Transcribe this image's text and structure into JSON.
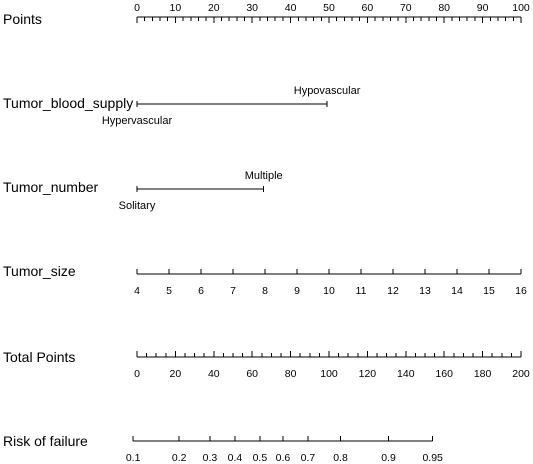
{
  "chart_data": {
    "type": "nomogram",
    "rows": [
      {
        "id": "points",
        "label": "Points",
        "kind": "scale",
        "min": 0,
        "max": 100,
        "major_ticks": [
          0,
          10,
          20,
          30,
          40,
          50,
          60,
          70,
          80,
          90,
          100
        ],
        "minor_step": 2,
        "labels_above": true
      },
      {
        "id": "tumor_blood_supply",
        "label": "Tumor_blood_supply",
        "kind": "categorical",
        "levels": [
          {
            "name": "Hypervascular",
            "points": 0,
            "label_position": "below"
          },
          {
            "name": "Hypovascular",
            "points": 49.5,
            "label_position": "above"
          }
        ]
      },
      {
        "id": "tumor_number",
        "label": "Tumor_number",
        "kind": "categorical",
        "levels": [
          {
            "name": "Solitary",
            "points": 0,
            "label_position": "below"
          },
          {
            "name": "Multiple",
            "points": 33,
            "label_position": "above"
          }
        ]
      },
      {
        "id": "tumor_size",
        "label": "Tumor_size",
        "kind": "scale",
        "points_min": 0,
        "points_max": 100,
        "values": [
          4,
          5,
          6,
          7,
          8,
          9,
          10,
          11,
          12,
          13,
          14,
          15,
          16
        ],
        "labels_above": false
      },
      {
        "id": "total_points",
        "label": "Total Points",
        "kind": "scale",
        "min": 0,
        "max": 200,
        "major_ticks": [
          0,
          20,
          40,
          60,
          80,
          100,
          120,
          140,
          160,
          180,
          200
        ],
        "minor_step": 5,
        "labels_above": false
      },
      {
        "id": "risk_of_failure",
        "label": "Risk of failure",
        "kind": "risk",
        "ticks": [
          {
            "label": "0.1",
            "total_points": -2
          },
          {
            "label": "0.2",
            "total_points": 22
          },
          {
            "label": "0.3",
            "total_points": 38
          },
          {
            "label": "0.4",
            "total_points": 51
          },
          {
            "label": "0.5",
            "total_points": 64
          },
          {
            "label": "0.6",
            "total_points": 76
          },
          {
            "label": "0.7",
            "total_points": 89
          },
          {
            "label": "0.8",
            "total_points": 106
          },
          {
            "label": "0.9",
            "total_points": 131
          },
          {
            "label": "0.95",
            "total_points": 154
          }
        ]
      }
    ]
  }
}
